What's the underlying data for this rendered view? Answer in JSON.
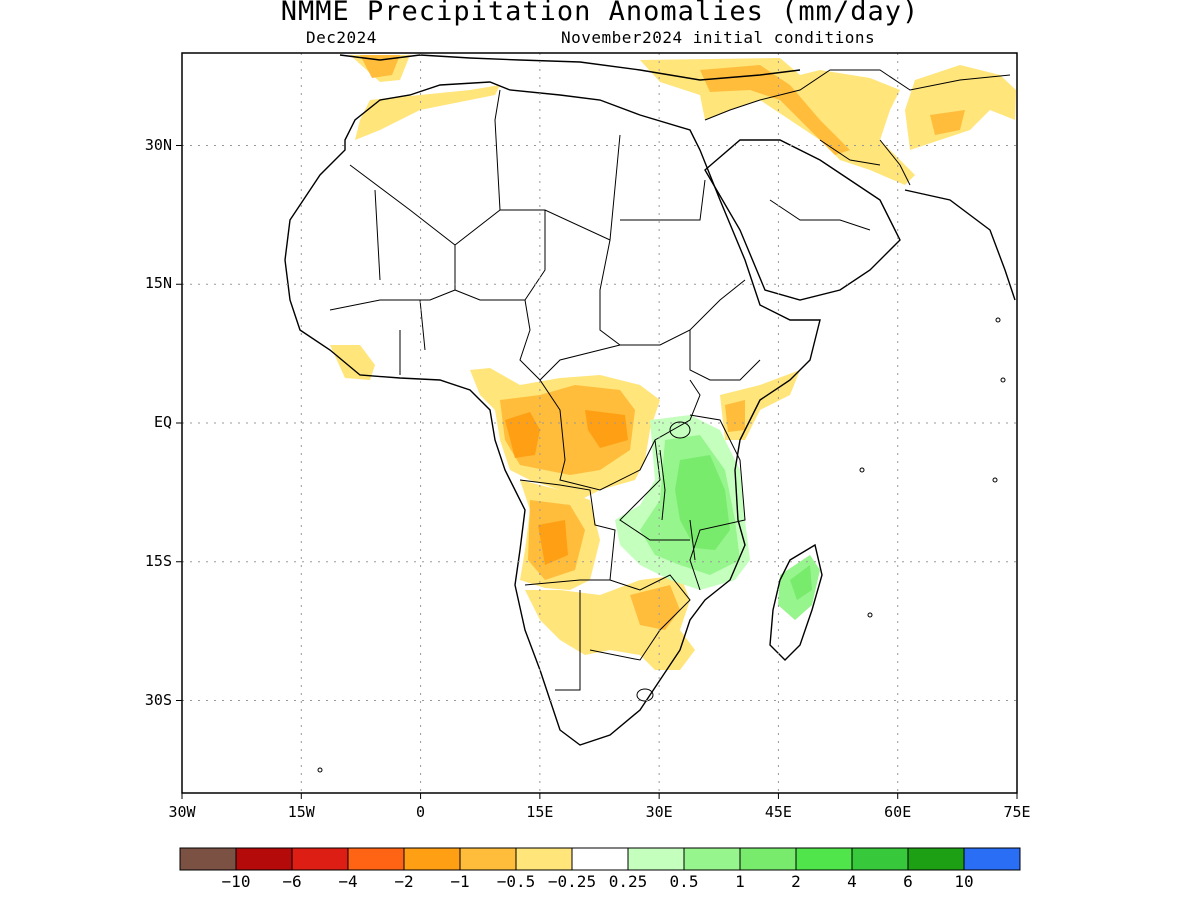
{
  "header": {
    "title": "NMME Precipitation Anomalies (mm/day)",
    "target_month": "Dec2024",
    "initial_conditions": "November2024 initial conditions"
  },
  "axes": {
    "lat_labels": [
      "30N",
      "15N",
      "EQ",
      "15S",
      "30S"
    ],
    "lon_labels": [
      "30W",
      "15W",
      "0",
      "15E",
      "30E",
      "45E",
      "60E",
      "75E"
    ],
    "lon_range": [
      -30,
      75
    ],
    "lat_range": [
      -40,
      40
    ],
    "grid": "dotted"
  },
  "colorbar": {
    "colors": [
      "#7b5144",
      "#b40a0a",
      "#dc1e14",
      "#ff6414",
      "#ff9f14",
      "#ffbd3b",
      "#ffe57a",
      "#ffffff",
      "#c5ffbe",
      "#96f58c",
      "#78eb6c",
      "#50e64b",
      "#37c83c",
      "#1ea014",
      "#2a6ef5"
    ],
    "labels": [
      "−10",
      "−6",
      "−4",
      "−2",
      "−1",
      "−0.5",
      "−0.25",
      "0.25",
      "0.5",
      "1",
      "2",
      "4",
      "6",
      "10"
    ]
  },
  "anomaly_regions": [
    {
      "region": "North Africa / Morocco coast",
      "level": "-0.5 to -0.25"
    },
    {
      "region": "Middle East / Iraq-Iran",
      "level": "-1 to -0.25"
    },
    {
      "region": "Central Asia / Afghanistan",
      "level": "-0.5 to -0.25"
    },
    {
      "region": "Central Africa / Congo basin",
      "level": "-1 to -0.5"
    },
    {
      "region": "Angola / Namibia",
      "level": "-1 to -0.25"
    },
    {
      "region": "Zimbabwe / Mozambique",
      "level": "-1 to -0.25"
    },
    {
      "region": "East Africa / Tanzania-Malawi",
      "level": "0.25 to 2"
    },
    {
      "region": "Madagascar",
      "level": "0.25 to 1"
    }
  ]
}
